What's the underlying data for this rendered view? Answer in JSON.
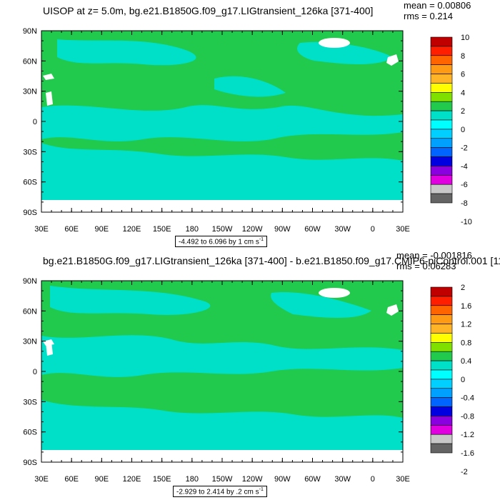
{
  "panels": [
    {
      "title": "UISOP at z=   5.0m, bg.e21.B1850G.f09_g17.LIGtransient_126ka [371-400]",
      "mean": "mean = 0.00806",
      "rms": "rms = 0.214",
      "range": "-4.492 to 6.096 by 1 cm s",
      "range_exp": "-1",
      "colorbar_labels": [
        "10",
        "8",
        "6",
        "4",
        "2",
        "0",
        "-2",
        "-4",
        "-6",
        "-8",
        "-10"
      ],
      "colors": [
        "#c00000",
        "#ff1e00",
        "#ff6400",
        "#ff9a14",
        "#ffb428",
        "#ffff00",
        "#80e000",
        "#21c94d",
        "#00e0c8",
        "#00ffff",
        "#00cfff",
        "#00a0ff",
        "#0064ff",
        "#0000e0",
        "#8a00e0",
        "#e000e0",
        "#c8c8c8",
        "#646464"
      ]
    },
    {
      "title": "bg.e21.B1850G.f09_g17.LIGtransient_126ka [371-400] - b.e21.B1850.f09_g17.CMIP6-piControl.001 [11",
      "mean": "mean = -0.001816",
      "rms": "rms = 0.06283",
      "range": "-2.929 to 2.414 by .2 cm s",
      "range_exp": "-1",
      "colorbar_labels": [
        "2",
        "1.6",
        "1.2",
        "0.8",
        "0.4",
        "0",
        "-0.4",
        "-0.8",
        "-1.2",
        "-1.6",
        "-2"
      ],
      "colors": [
        "#c00000",
        "#ff1e00",
        "#ff6400",
        "#ff9a14",
        "#ffb428",
        "#ffff00",
        "#80e000",
        "#21c94d",
        "#00e0c8",
        "#00ffff",
        "#00cfff",
        "#00a0ff",
        "#0064ff",
        "#0000e0",
        "#8a00e0",
        "#e000e0",
        "#c8c8c8",
        "#646464"
      ]
    }
  ],
  "lat_labels": [
    "90N",
    "60N",
    "30N",
    "0",
    "30S",
    "60S",
    "90S"
  ],
  "lon_labels": [
    "30E",
    "60E",
    "90E",
    "120E",
    "150E",
    "180",
    "150W",
    "120W",
    "90W",
    "60W",
    "30W",
    "0",
    "30E"
  ],
  "map_colors": {
    "ocean_green": "#21c94d",
    "ocean_cyan": "#00e0c8",
    "land": "#ffffff"
  }
}
